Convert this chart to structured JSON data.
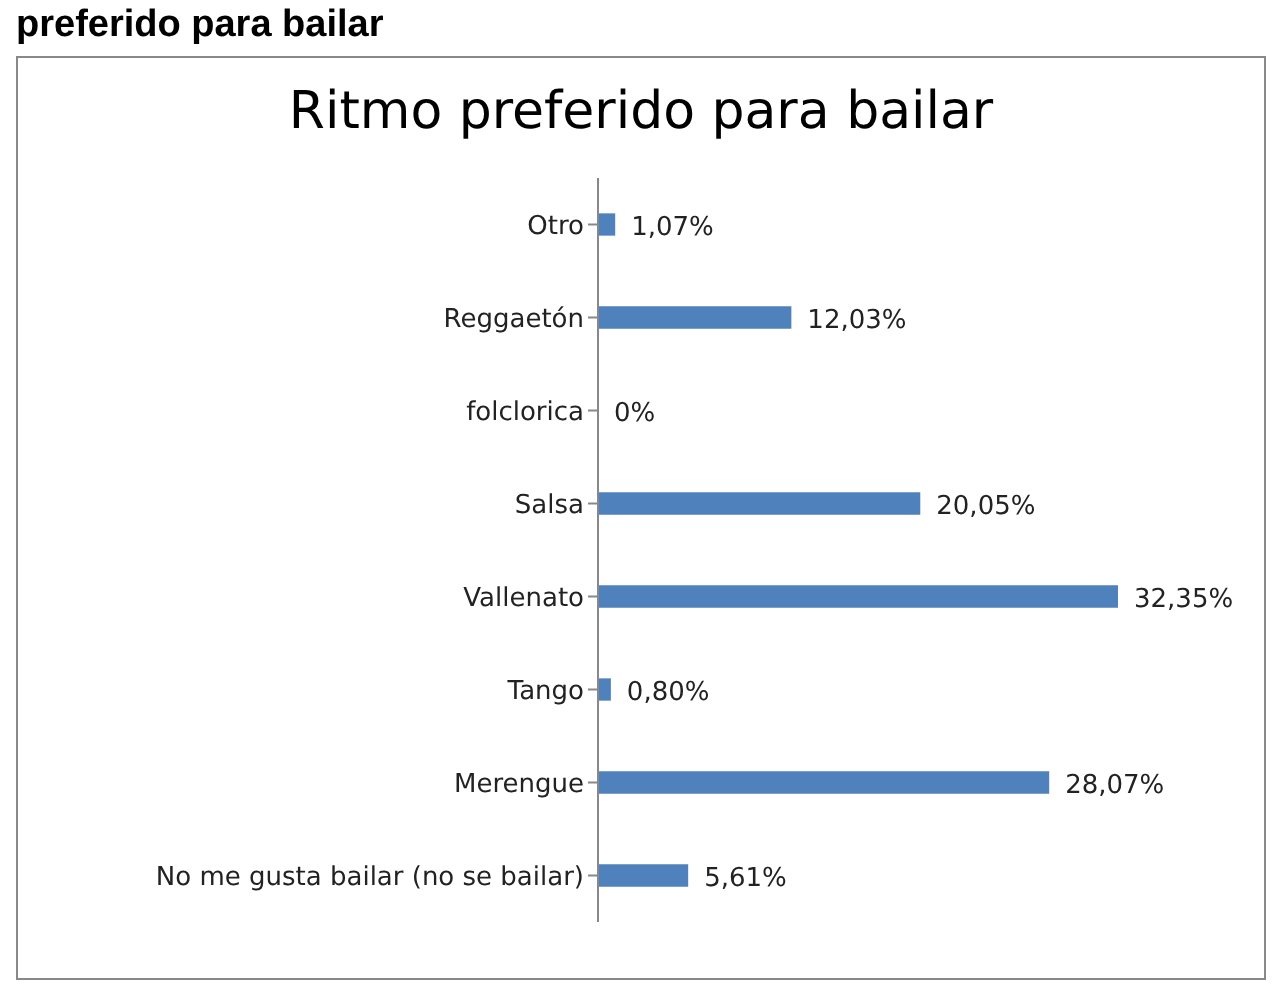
{
  "chart_data": {
    "type": "bar",
    "orientation": "horizontal",
    "title": "Ritmo preferido para bailar",
    "annotations": [
      "preferido para bailar"
    ],
    "categories": [
      "Otro",
      "Reggaetón",
      "folclorica",
      "Salsa",
      "Vallenato",
      "Tango",
      "Merengue",
      "No me gusta bailar (no se bailar)"
    ],
    "values": [
      1.07,
      12.03,
      0,
      20.05,
      32.35,
      0.8,
      28.07,
      5.61
    ],
    "value_labels": [
      "1,07%",
      "12,03%",
      "0%",
      "20,05%",
      "32,35%",
      "0,80%",
      "28,07%",
      "5,61%"
    ],
    "color": "#4f81bd",
    "grid": false,
    "legend": false
  }
}
